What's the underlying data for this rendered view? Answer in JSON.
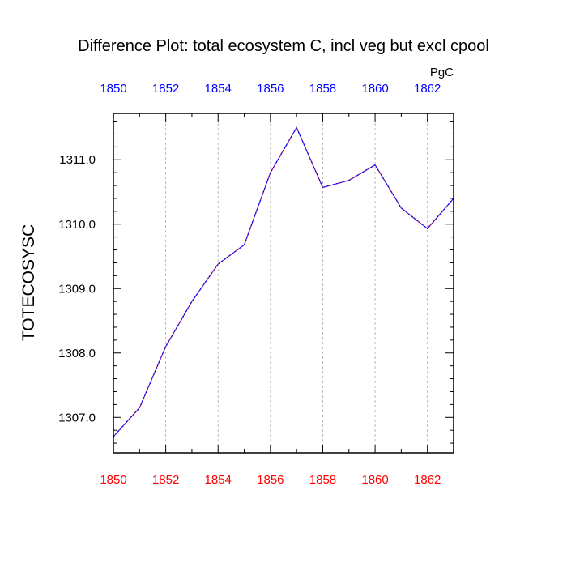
{
  "chart_data": {
    "type": "line",
    "title": "Difference Plot: total ecosystem C, incl veg but excl cpool",
    "units_label": "PgC",
    "xlabel": "",
    "ylabel": "TOTECOSYSC",
    "xlim": [
      1850,
      1863
    ],
    "ylim": [
      1306.45,
      1311.72
    ],
    "x_ticks": [
      1850,
      1852,
      1854,
      1856,
      1858,
      1860,
      1862
    ],
    "x_tick_labels": [
      "1850",
      "1852",
      "1854",
      "1856",
      "1858",
      "1860",
      "1862"
    ],
    "top_x_tick_labels": [
      "1850",
      "1852",
      "1854",
      "1856",
      "1858",
      "1860",
      "1862"
    ],
    "y_ticks": [
      1307.0,
      1308.0,
      1309.0,
      1310.0,
      1311.0
    ],
    "y_tick_labels": [
      "1307.0",
      "1308.0",
      "1309.0",
      "1310.0",
      "1311.0"
    ],
    "grid": "vertical dashed at major x ticks",
    "series": [
      {
        "x": [
          1850,
          1851,
          1852,
          1853,
          1854,
          1855,
          1856,
          1857,
          1858,
          1859,
          1860,
          1861,
          1862,
          1863
        ],
        "y": [
          1306.7,
          1307.15,
          1308.1,
          1308.8,
          1309.38,
          1309.68,
          1310.8,
          1311.5,
          1310.57,
          1310.68,
          1310.92,
          1310.25,
          1309.93,
          1310.4
        ],
        "color": "#8b1a8b",
        "secondary_color": "#0000ff",
        "style": "dashed"
      }
    ],
    "colors": {
      "bottom_axis_labels": "#ff0000",
      "top_axis_labels": "#0000ff",
      "text": "#000000",
      "grid": "#aaaaaa"
    }
  }
}
